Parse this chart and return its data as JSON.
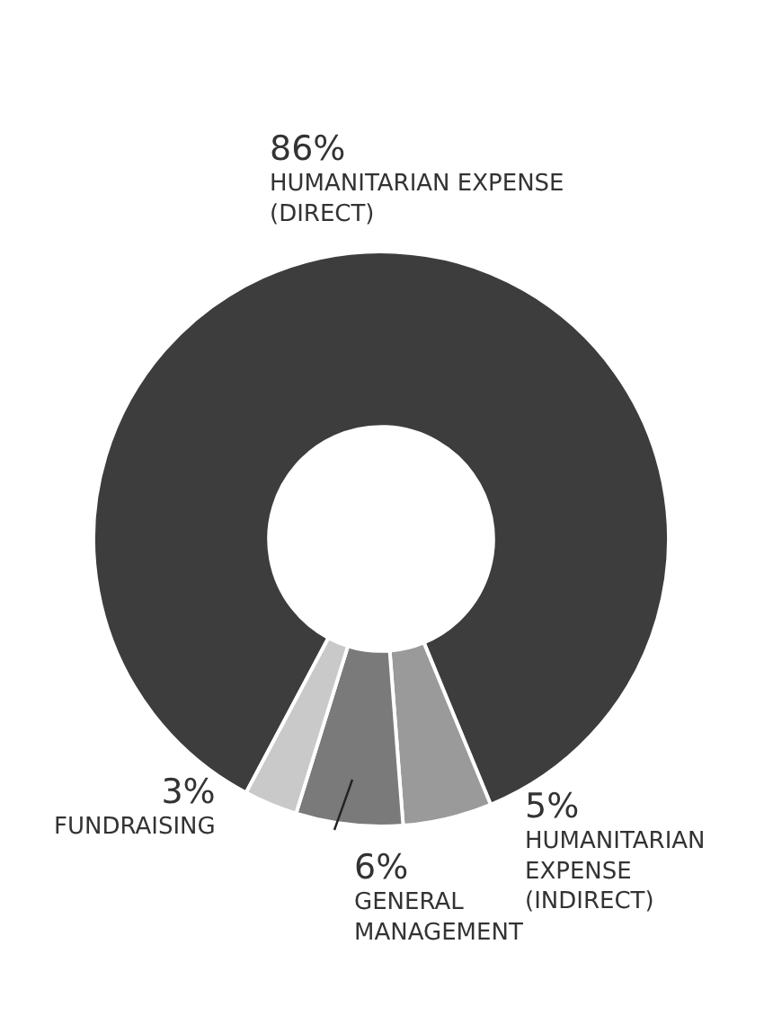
{
  "chart_data": {
    "type": "donut",
    "categories": [
      "HUMANITARIAN EXPENSE (DIRECT)",
      "HUMANITARIAN EXPENSE (INDIRECT)",
      "GENERAL MANAGEMENT",
      "FUNDRAISING"
    ],
    "values": [
      86,
      5,
      6,
      3
    ],
    "value_labels": [
      "86%",
      "5%",
      "6%",
      "3%"
    ],
    "colors": [
      "#3d3d3d",
      "#9a9a9a",
      "#7a7a7a",
      "#c9c9c9"
    ],
    "legend": false
  }
}
